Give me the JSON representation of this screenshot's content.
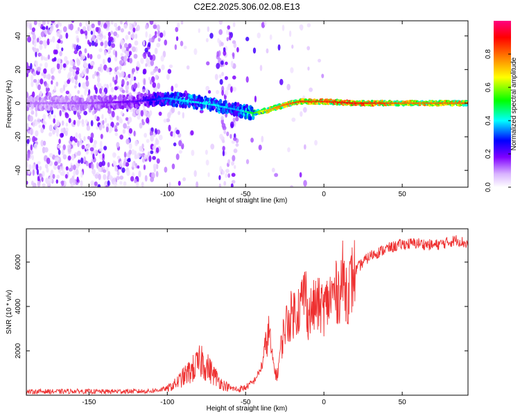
{
  "title": "C2E2.2025.306.02.08.E13",
  "chart_data": [
    {
      "type": "heatmap",
      "xlabel": "Height of straight line (km)",
      "ylabel": "Frequency (Hz)",
      "xlim": [
        -190,
        92
      ],
      "ylim": [
        -50,
        49
      ],
      "xticks": [
        -150,
        -100,
        -50,
        0,
        50
      ],
      "yticks": [
        -40,
        -20,
        0,
        20,
        40
      ],
      "colorbar": {
        "label": "Normalized spectral amplitude",
        "range": [
          0,
          1
        ],
        "ticks": [
          "0.0",
          "0.2",
          "0.4",
          "0.6",
          "0.8"
        ],
        "tick_values": [
          0.0,
          0.2,
          0.4,
          0.6,
          0.8
        ],
        "colormap": [
          "#ffffff",
          "#d9b3ff",
          "#8000ff",
          "#0000ff",
          "#00ffff",
          "#00ff00",
          "#ffff00",
          "#ff8000",
          "#ff0000",
          "#ff0080"
        ]
      },
      "ridge": [
        {
          "x": -190,
          "freq": 0,
          "amp": 0.15
        },
        {
          "x": -150,
          "freq": 0,
          "amp": 0.18
        },
        {
          "x": -120,
          "freq": 1,
          "amp": 0.25
        },
        {
          "x": -100,
          "freq": 3,
          "amp": 0.4
        },
        {
          "x": -85,
          "freq": 1,
          "amp": 0.45
        },
        {
          "x": -70,
          "freq": -1,
          "amp": 0.45
        },
        {
          "x": -55,
          "freq": -4,
          "amp": 0.4
        },
        {
          "x": -45,
          "freq": -6,
          "amp": 0.55
        },
        {
          "x": -35,
          "freq": -4,
          "amp": 0.75
        },
        {
          "x": -25,
          "freq": -1,
          "amp": 0.8
        },
        {
          "x": -15,
          "freq": 1,
          "amp": 0.85
        },
        {
          "x": 0,
          "freq": 1,
          "amp": 0.85
        },
        {
          "x": 20,
          "freq": 0,
          "amp": 0.9
        },
        {
          "x": 50,
          "freq": 0,
          "amp": 0.8
        },
        {
          "x": 92,
          "freq": 0,
          "amp": 0.8
        }
      ]
    },
    {
      "type": "line",
      "xlabel": "Height of straight line (km)",
      "ylabel": "SNR (10 * v/v)",
      "xlim": [
        -190,
        92
      ],
      "ylim": [
        0,
        7500
      ],
      "xticks": [
        -150,
        -100,
        -50,
        0,
        50
      ],
      "yticks": [
        2000,
        4000,
        6000
      ],
      "color": "#ee3030",
      "series": [
        {
          "x": [
            -190,
            -180,
            -170,
            -160,
            -150,
            -140,
            -130,
            -120,
            -110,
            -100,
            -95,
            -90,
            -85,
            -80,
            -78,
            -75,
            -70,
            -65,
            -60,
            -55,
            -50,
            -45,
            -40,
            -37,
            -35,
            -33,
            -30,
            -28,
            -25,
            -20,
            -15,
            -12,
            -10,
            -5,
            0,
            5,
            10,
            12,
            15,
            20,
            25,
            30,
            40,
            50,
            60,
            70,
            80,
            85,
            92
          ],
          "values": [
            150,
            170,
            160,
            180,
            170,
            160,
            180,
            170,
            190,
            300,
            500,
            800,
            1100,
            1400,
            1600,
            1300,
            900,
            500,
            320,
            250,
            350,
            600,
            1200,
            2300,
            2900,
            1600,
            800,
            1900,
            3100,
            3700,
            4000,
            4800,
            3600,
            4100,
            3900,
            4500,
            4700,
            5300,
            4600,
            5600,
            6000,
            6300,
            6600,
            6800,
            6850,
            6750,
            6900,
            7000,
            6800
          ]
        }
      ]
    }
  ]
}
